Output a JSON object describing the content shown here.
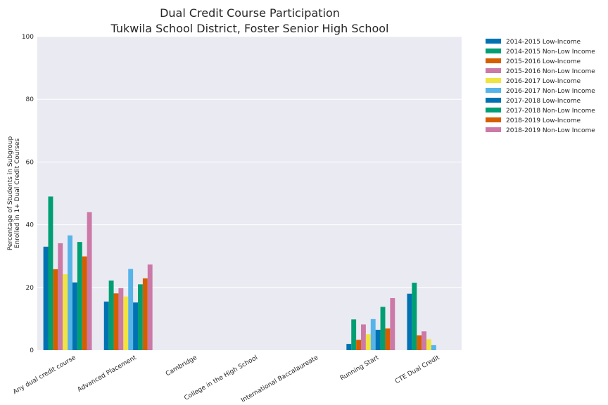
{
  "chart_data": {
    "type": "bar",
    "title": [
      "Dual Credit Course Participation",
      "Tukwila School District, Foster Senior High School"
    ],
    "ylabel": [
      "Percentage of Students in Subgroup",
      "Enrolled in 1+ Dual Credit Courses"
    ],
    "xlabel": "",
    "ylim": [
      0,
      100
    ],
    "yticks": [
      0,
      20,
      40,
      60,
      80,
      100
    ],
    "grid": true,
    "legend_position": "right-outside",
    "categories": [
      "Any dual credit course",
      "Advanced Placement",
      "Cambridge",
      "College in the High School",
      "International Baccalaureate",
      "Running Start",
      "CTE Dual Credit"
    ],
    "series": [
      {
        "name": "2014-2015 Low-Income",
        "color": "#0072B2",
        "values": [
          33,
          15.5,
          null,
          null,
          null,
          2,
          18
        ]
      },
      {
        "name": "2014-2015 Non-Low Income",
        "color": "#009E73",
        "values": [
          49,
          22.2,
          null,
          null,
          null,
          9.8,
          21.5
        ]
      },
      {
        "name": "2015-2016 Low-Income",
        "color": "#D55E00",
        "values": [
          25.8,
          18.1,
          null,
          null,
          null,
          3.3,
          4.7
        ]
      },
      {
        "name": "2015-2016 Non-Low Income",
        "color": "#CC79A7",
        "values": [
          34.1,
          19.8,
          null,
          null,
          null,
          8.2,
          6
        ]
      },
      {
        "name": "2016-2017 Low-Income",
        "color": "#F0E442",
        "values": [
          24.2,
          17.1,
          null,
          null,
          null,
          5.1,
          3.5
        ]
      },
      {
        "name": "2016-2017 Non-Low Income",
        "color": "#56B4E9",
        "values": [
          36.6,
          25.9,
          null,
          null,
          null,
          9.9,
          1.6
        ]
      },
      {
        "name": "2017-2018 Low-Income",
        "color": "#0072B2",
        "values": [
          21.6,
          15.2,
          null,
          null,
          null,
          6.5,
          null
        ]
      },
      {
        "name": "2017-2018 Non-Low Income",
        "color": "#009E73",
        "values": [
          34.5,
          21,
          null,
          null,
          null,
          13.8,
          null
        ]
      },
      {
        "name": "2018-2019 Low-Income",
        "color": "#D55E00",
        "values": [
          29.9,
          22.9,
          null,
          null,
          null,
          6.9,
          null
        ]
      },
      {
        "name": "2018-2019 Non-Low Income",
        "color": "#CC79A7",
        "values": [
          44,
          27.3,
          null,
          null,
          null,
          16.6,
          null
        ]
      }
    ]
  }
}
